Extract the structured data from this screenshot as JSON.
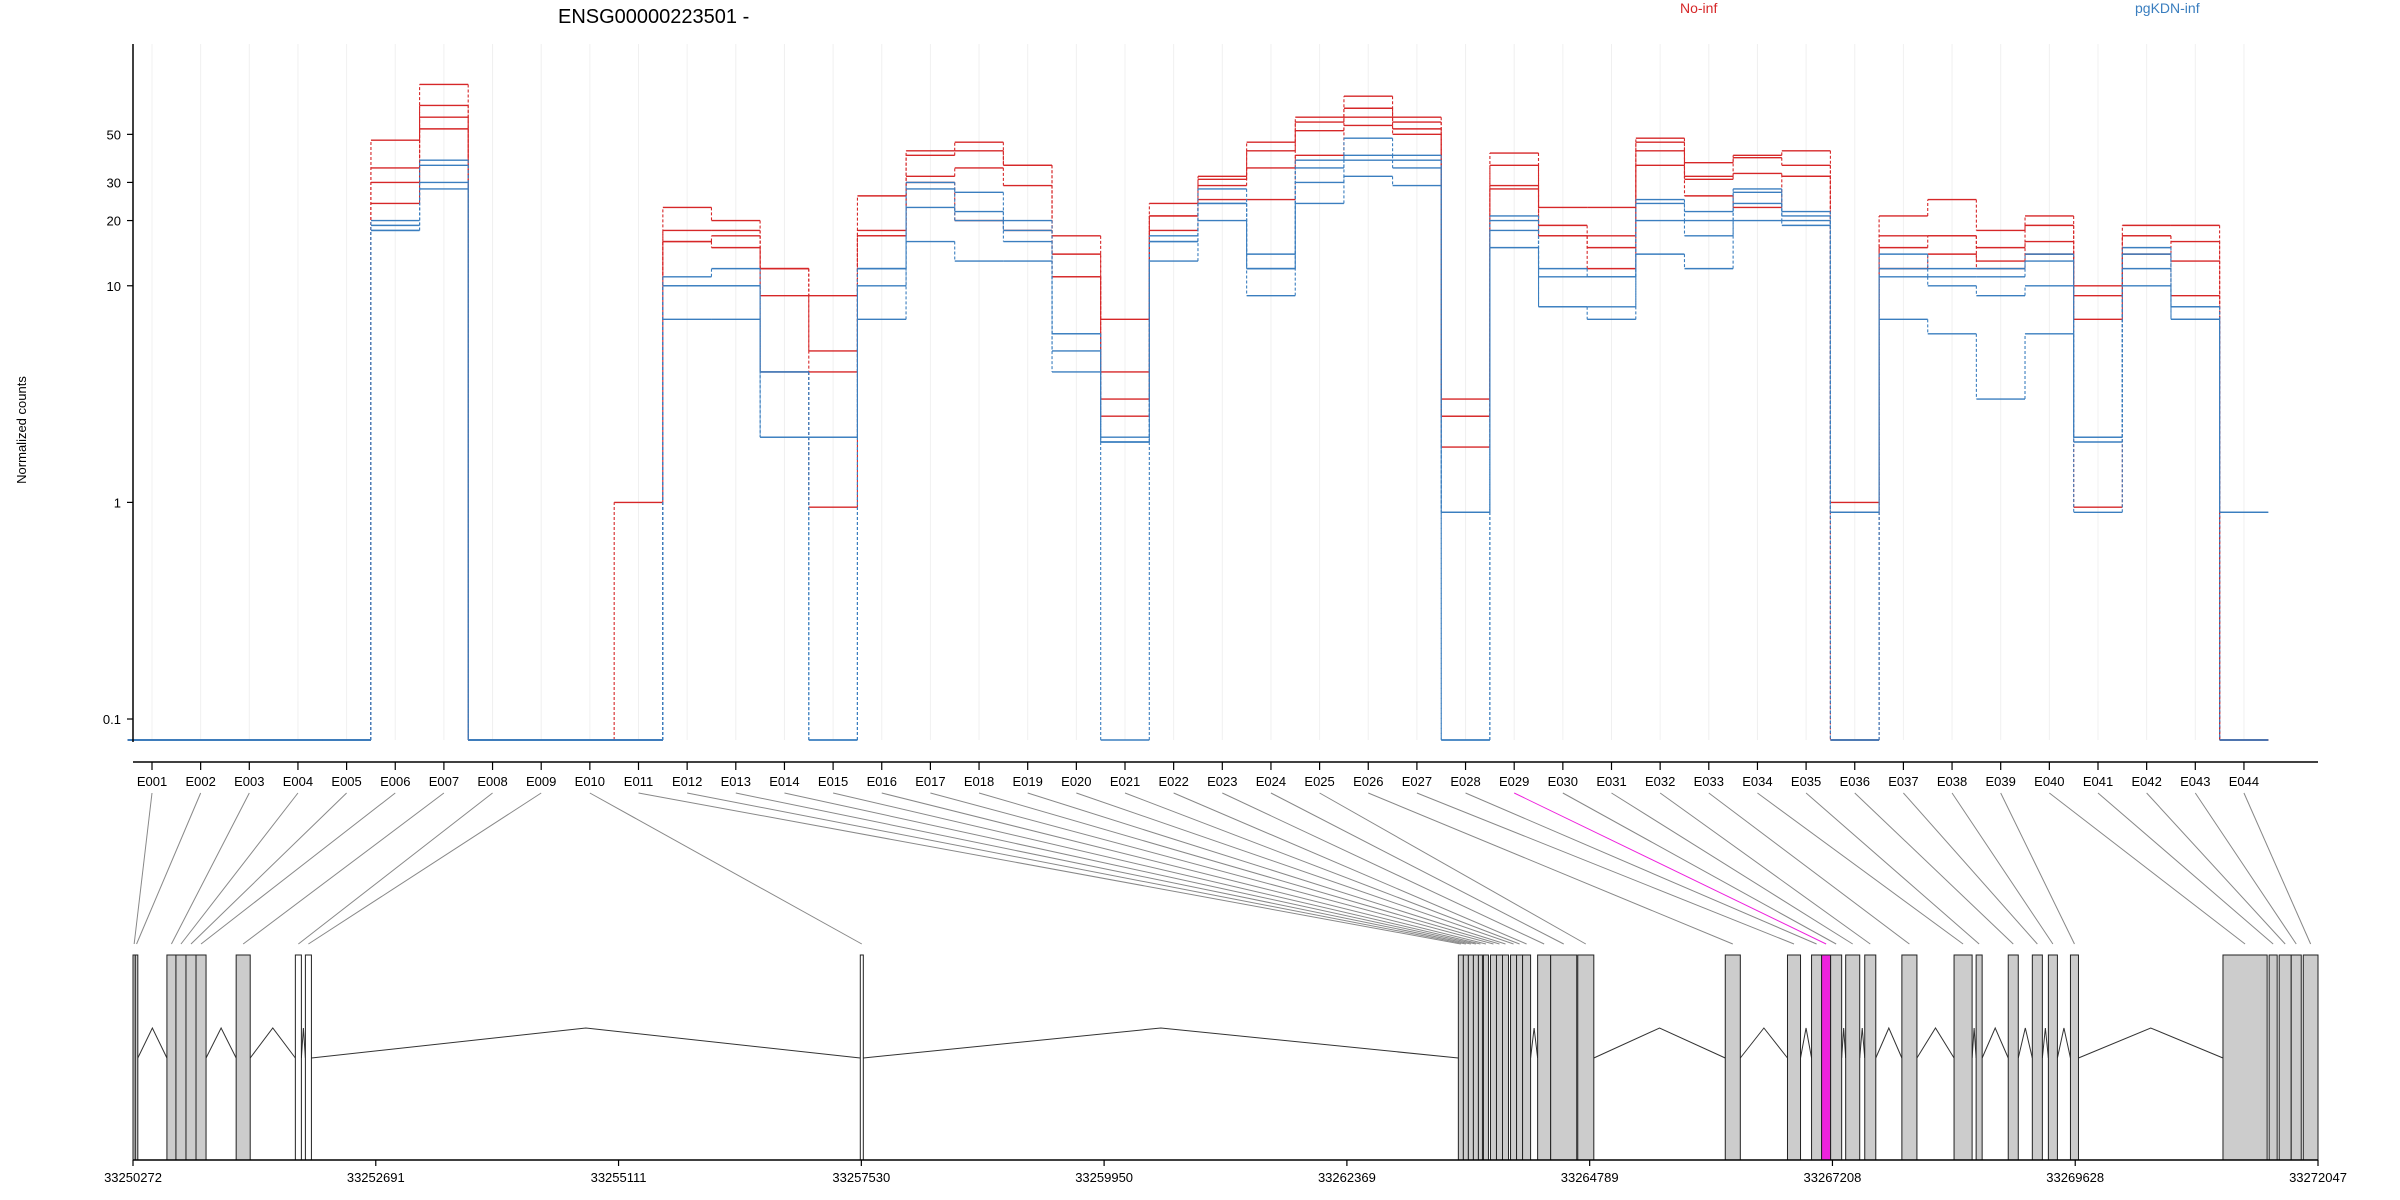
{
  "header": {
    "gene_title": "ENSG00000223501 -",
    "legend": [
      {
        "label": "No-inf",
        "color": "#d62728"
      },
      {
        "label": "pgKDN-inf",
        "color": "#3a7ebf"
      }
    ]
  },
  "colors": {
    "group1": "#d62728",
    "group2": "#3a7ebf",
    "highlight": "#ee22dd",
    "exon_fill": "#cccccc",
    "connector": "#888888"
  },
  "chart_data": {
    "type": "line",
    "title": "ENSG00000223501 -",
    "ylabel": "Normalized counts",
    "yscale": "log",
    "ylim": [
      0.08,
      120
    ],
    "yticks": [
      {
        "value": 0.1,
        "label": "0.1"
      },
      {
        "value": 1,
        "label": "1"
      },
      {
        "value": 10,
        "label": "10"
      },
      {
        "value": 20,
        "label": "20"
      },
      {
        "value": 30,
        "label": "30"
      },
      {
        "value": 50,
        "label": "50"
      }
    ],
    "categories": [
      "E001",
      "E002",
      "E003",
      "E004",
      "E005",
      "E006",
      "E007",
      "E008",
      "E009",
      "E010",
      "E011",
      "E012",
      "E013",
      "E014",
      "E015",
      "E016",
      "E017",
      "E018",
      "E019",
      "E020",
      "E021",
      "E022",
      "E023",
      "E024",
      "E025",
      "E026",
      "E027",
      "E028",
      "E029",
      "E030",
      "E031",
      "E032",
      "E033",
      "E034",
      "E035",
      "E036",
      "E037",
      "E038",
      "E039",
      "E040",
      "E041",
      "E042",
      "E043",
      "E044"
    ],
    "highlight_exon": "E029",
    "series": [
      {
        "group": "No-inf",
        "values": [
          0.08,
          0.08,
          0.08,
          0.08,
          0.08,
          47,
          85,
          0.08,
          0.08,
          0.08,
          1,
          23,
          20,
          12,
          9,
          26,
          42,
          46,
          36,
          17,
          7,
          24,
          32,
          46,
          60,
          75,
          60,
          3,
          41,
          23,
          23,
          48,
          37,
          40,
          42,
          1,
          21,
          25,
          18,
          21,
          10,
          19,
          19,
          0.08
        ]
      },
      {
        "group": "No-inf",
        "values": [
          0.08,
          0.08,
          0.08,
          0.08,
          0.08,
          35,
          68,
          0.08,
          0.08,
          0.08,
          0.08,
          18,
          18,
          12,
          5,
          18,
          40,
          42,
          36,
          14,
          4,
          21,
          31,
          42,
          57,
          66,
          57,
          2.5,
          36,
          19,
          17,
          46,
          32,
          39,
          36,
          0.9,
          17,
          17,
          15,
          19,
          9,
          17,
          16,
          0.08
        ]
      },
      {
        "group": "No-inf",
        "values": [
          0.08,
          0.08,
          0.08,
          0.08,
          0.08,
          30,
          60,
          0.08,
          0.08,
          0.08,
          0.08,
          16,
          17,
          9,
          4,
          17,
          32,
          35,
          29,
          11,
          3,
          21,
          29,
          35,
          52,
          60,
          53,
          1.8,
          29,
          17,
          15,
          42,
          31,
          33,
          32,
          0.08,
          15,
          17,
          13,
          16,
          7,
          17,
          13,
          0.08
        ]
      },
      {
        "group": "No-inf",
        "values": [
          0.08,
          0.08,
          0.08,
          0.08,
          0.08,
          24,
          53,
          0.08,
          0.08,
          0.08,
          0.08,
          16,
          15,
          4,
          0.95,
          17,
          30,
          20,
          18,
          11,
          2.5,
          18,
          25,
          25,
          40,
          55,
          50,
          2.5,
          28,
          17,
          12,
          36,
          26,
          23,
          32,
          0.08,
          12,
          14,
          12,
          14,
          0.95,
          14,
          9,
          0.08
        ]
      },
      {
        "group": "pgKDN-inf",
        "values": [
          0.08,
          0.08,
          0.08,
          0.08,
          0.08,
          20,
          38,
          0.08,
          0.08,
          0.08,
          0.08,
          11,
          12,
          4,
          2,
          12,
          30,
          27,
          20,
          6,
          2,
          17,
          28,
          14,
          38,
          48,
          40,
          0.9,
          21,
          12,
          11,
          25,
          22,
          28,
          22,
          0.9,
          14,
          12,
          12,
          14,
          2,
          15,
          8,
          0.9
        ]
      },
      {
        "group": "pgKDN-inf",
        "values": [
          0.08,
          0.08,
          0.08,
          0.08,
          0.08,
          19,
          36,
          0.08,
          0.08,
          0.08,
          0.08,
          10,
          10,
          4,
          2,
          12,
          28,
          22,
          18,
          6,
          1.9,
          16,
          24,
          12,
          35,
          40,
          38,
          0.9,
          20,
          11,
          11,
          24,
          20,
          27,
          21,
          0.9,
          12,
          11,
          11,
          13,
          2,
          14,
          8,
          0.9
        ]
      },
      {
        "group": "pgKDN-inf",
        "values": [
          0.08,
          0.08,
          0.08,
          0.08,
          0.08,
          18,
          30,
          0.08,
          0.08,
          0.08,
          0.08,
          10,
          10,
          2,
          0.08,
          10,
          23,
          20,
          16,
          5,
          1.9,
          16,
          24,
          12,
          30,
          38,
          35,
          0.08,
          18,
          8,
          8,
          20,
          17,
          24,
          20,
          0.08,
          11,
          10,
          9,
          10,
          1.9,
          12,
          7,
          0.08
        ]
      },
      {
        "group": "pgKDN-inf",
        "values": [
          0.08,
          0.08,
          0.08,
          0.08,
          0.08,
          18,
          28,
          0.08,
          0.08,
          0.08,
          0.08,
          7,
          7,
          2,
          0.08,
          7,
          16,
          13,
          13,
          4,
          0.08,
          13,
          20,
          9,
          24,
          32,
          29,
          0.08,
          15,
          8,
          7,
          14,
          12,
          20,
          19,
          0.08,
          7,
          6,
          3,
          6,
          0.9,
          10,
          7,
          0.08
        ]
      }
    ],
    "genomic_axis": {
      "min": 33250272,
      "max": 33272047,
      "tick_labels": [
        "33250272",
        "33252691",
        "33255111",
        "33257530",
        "33259950",
        "33262369",
        "33264789",
        "33267208",
        "33269628",
        "33272047"
      ]
    },
    "exons": [
      [
        33250272,
        33250292
      ],
      [
        33250300,
        33250320
      ],
      [
        33250610,
        33250900
      ],
      [
        33250900,
        33251000
      ],
      [
        33251300,
        33251440
      ],
      [
        33251890,
        33251950
      ],
      [
        33251990,
        33252050
      ],
      [
        33257520,
        33257550
      ],
      [
        33263480,
        33263720
      ],
      [
        33263730,
        33263780
      ],
      [
        33263800,
        33263980
      ],
      [
        33264000,
        33264200
      ],
      [
        33264270,
        33264660
      ],
      [
        33264670,
        33264830
      ],
      [
        33266140,
        33266290
      ],
      [
        33266760,
        33266890
      ],
      [
        33267000,
        33267190
      ],
      [
        33267190,
        33267300
      ],
      [
        33267340,
        33267480
      ],
      [
        33267530,
        33267640
      ],
      [
        33267900,
        33268050
      ],
      [
        33268420,
        33268600
      ],
      [
        33268640,
        33268700
      ],
      [
        33268960,
        33269060
      ],
      [
        33269200,
        33269300
      ],
      [
        33269360,
        33269450
      ],
      [
        33269580,
        33269660
      ],
      [
        33271100,
        33271540
      ],
      [
        33271560,
        33271640
      ],
      [
        33271660,
        33271880
      ],
      [
        33271900,
        33272047
      ]
    ],
    "exon_bins": [
      [
        33250272,
        33250295
      ],
      [
        33250295,
        33250320
      ],
      [
        33250610,
        33250700
      ],
      [
        33250700,
        33250800
      ],
      [
        33250800,
        33250900
      ],
      [
        33250900,
        33251000
      ],
      [
        33251300,
        33251440
      ],
      [
        33251890,
        33251950
      ],
      [
        33251990,
        33252050
      ],
      [
        33257520,
        33257550
      ],
      [
        33263480,
        33263530
      ],
      [
        33263530,
        33263580
      ],
      [
        33263580,
        33263630
      ],
      [
        33263630,
        33263680
      ],
      [
        33263680,
        33263720
      ],
      [
        33263730,
        33263780
      ],
      [
        33263800,
        33263860
      ],
      [
        33263860,
        33263920
      ],
      [
        33263920,
        33263980
      ],
      [
        33264000,
        33264060
      ],
      [
        33264060,
        33264120
      ],
      [
        33264120,
        33264200
      ],
      [
        33264270,
        33264400
      ],
      [
        33264400,
        33264660
      ],
      [
        33264670,
        33264830
      ],
      [
        33266140,
        33266290
      ],
      [
        33266760,
        33266890
      ],
      [
        33267000,
        33267100
      ],
      [
        33267100,
        33267190
      ],
      [
        33267190,
        33267300
      ],
      [
        33267340,
        33267480
      ],
      [
        33267530,
        33267640
      ],
      [
        33267900,
        33268050
      ],
      [
        33268420,
        33268600
      ],
      [
        33268640,
        33268700
      ],
      [
        33268960,
        33269060
      ],
      [
        33269200,
        33269300
      ],
      [
        33269360,
        33269450
      ],
      [
        33269580,
        33269660
      ],
      [
        33271100,
        33271540
      ],
      [
        33271560,
        33271640
      ],
      [
        33271660,
        33271780
      ],
      [
        33271780,
        33271880
      ],
      [
        33271900,
        33272047
      ]
    ]
  }
}
